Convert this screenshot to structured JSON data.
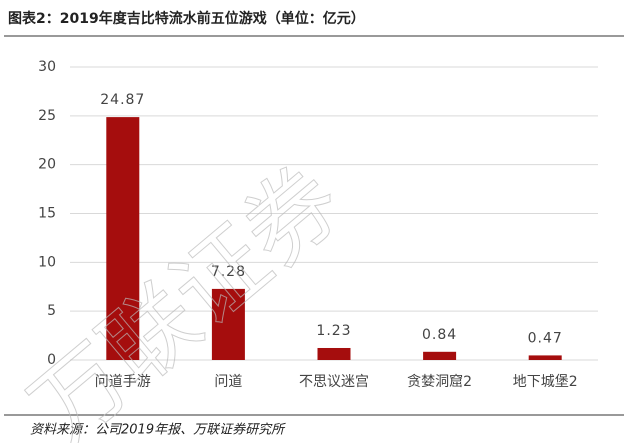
{
  "chart_data": {
    "type": "bar",
    "title": "图表2：2019年度吉比特流水前五位游戏（单位：亿元）",
    "categories": [
      "问道手游",
      "问道",
      "不思议迷宫",
      "贪婪洞窟2",
      "地下城堡2"
    ],
    "values": [
      24.87,
      7.28,
      1.23,
      0.84,
      0.47
    ],
    "color": "#a50d0d",
    "ylim": [
      0,
      30
    ],
    "yticks": [
      0,
      5,
      10,
      15,
      20,
      25,
      30
    ],
    "grid": true,
    "source": "资料来源：公司2019年报、万联证券研究所",
    "watermark": "万联证券"
  }
}
